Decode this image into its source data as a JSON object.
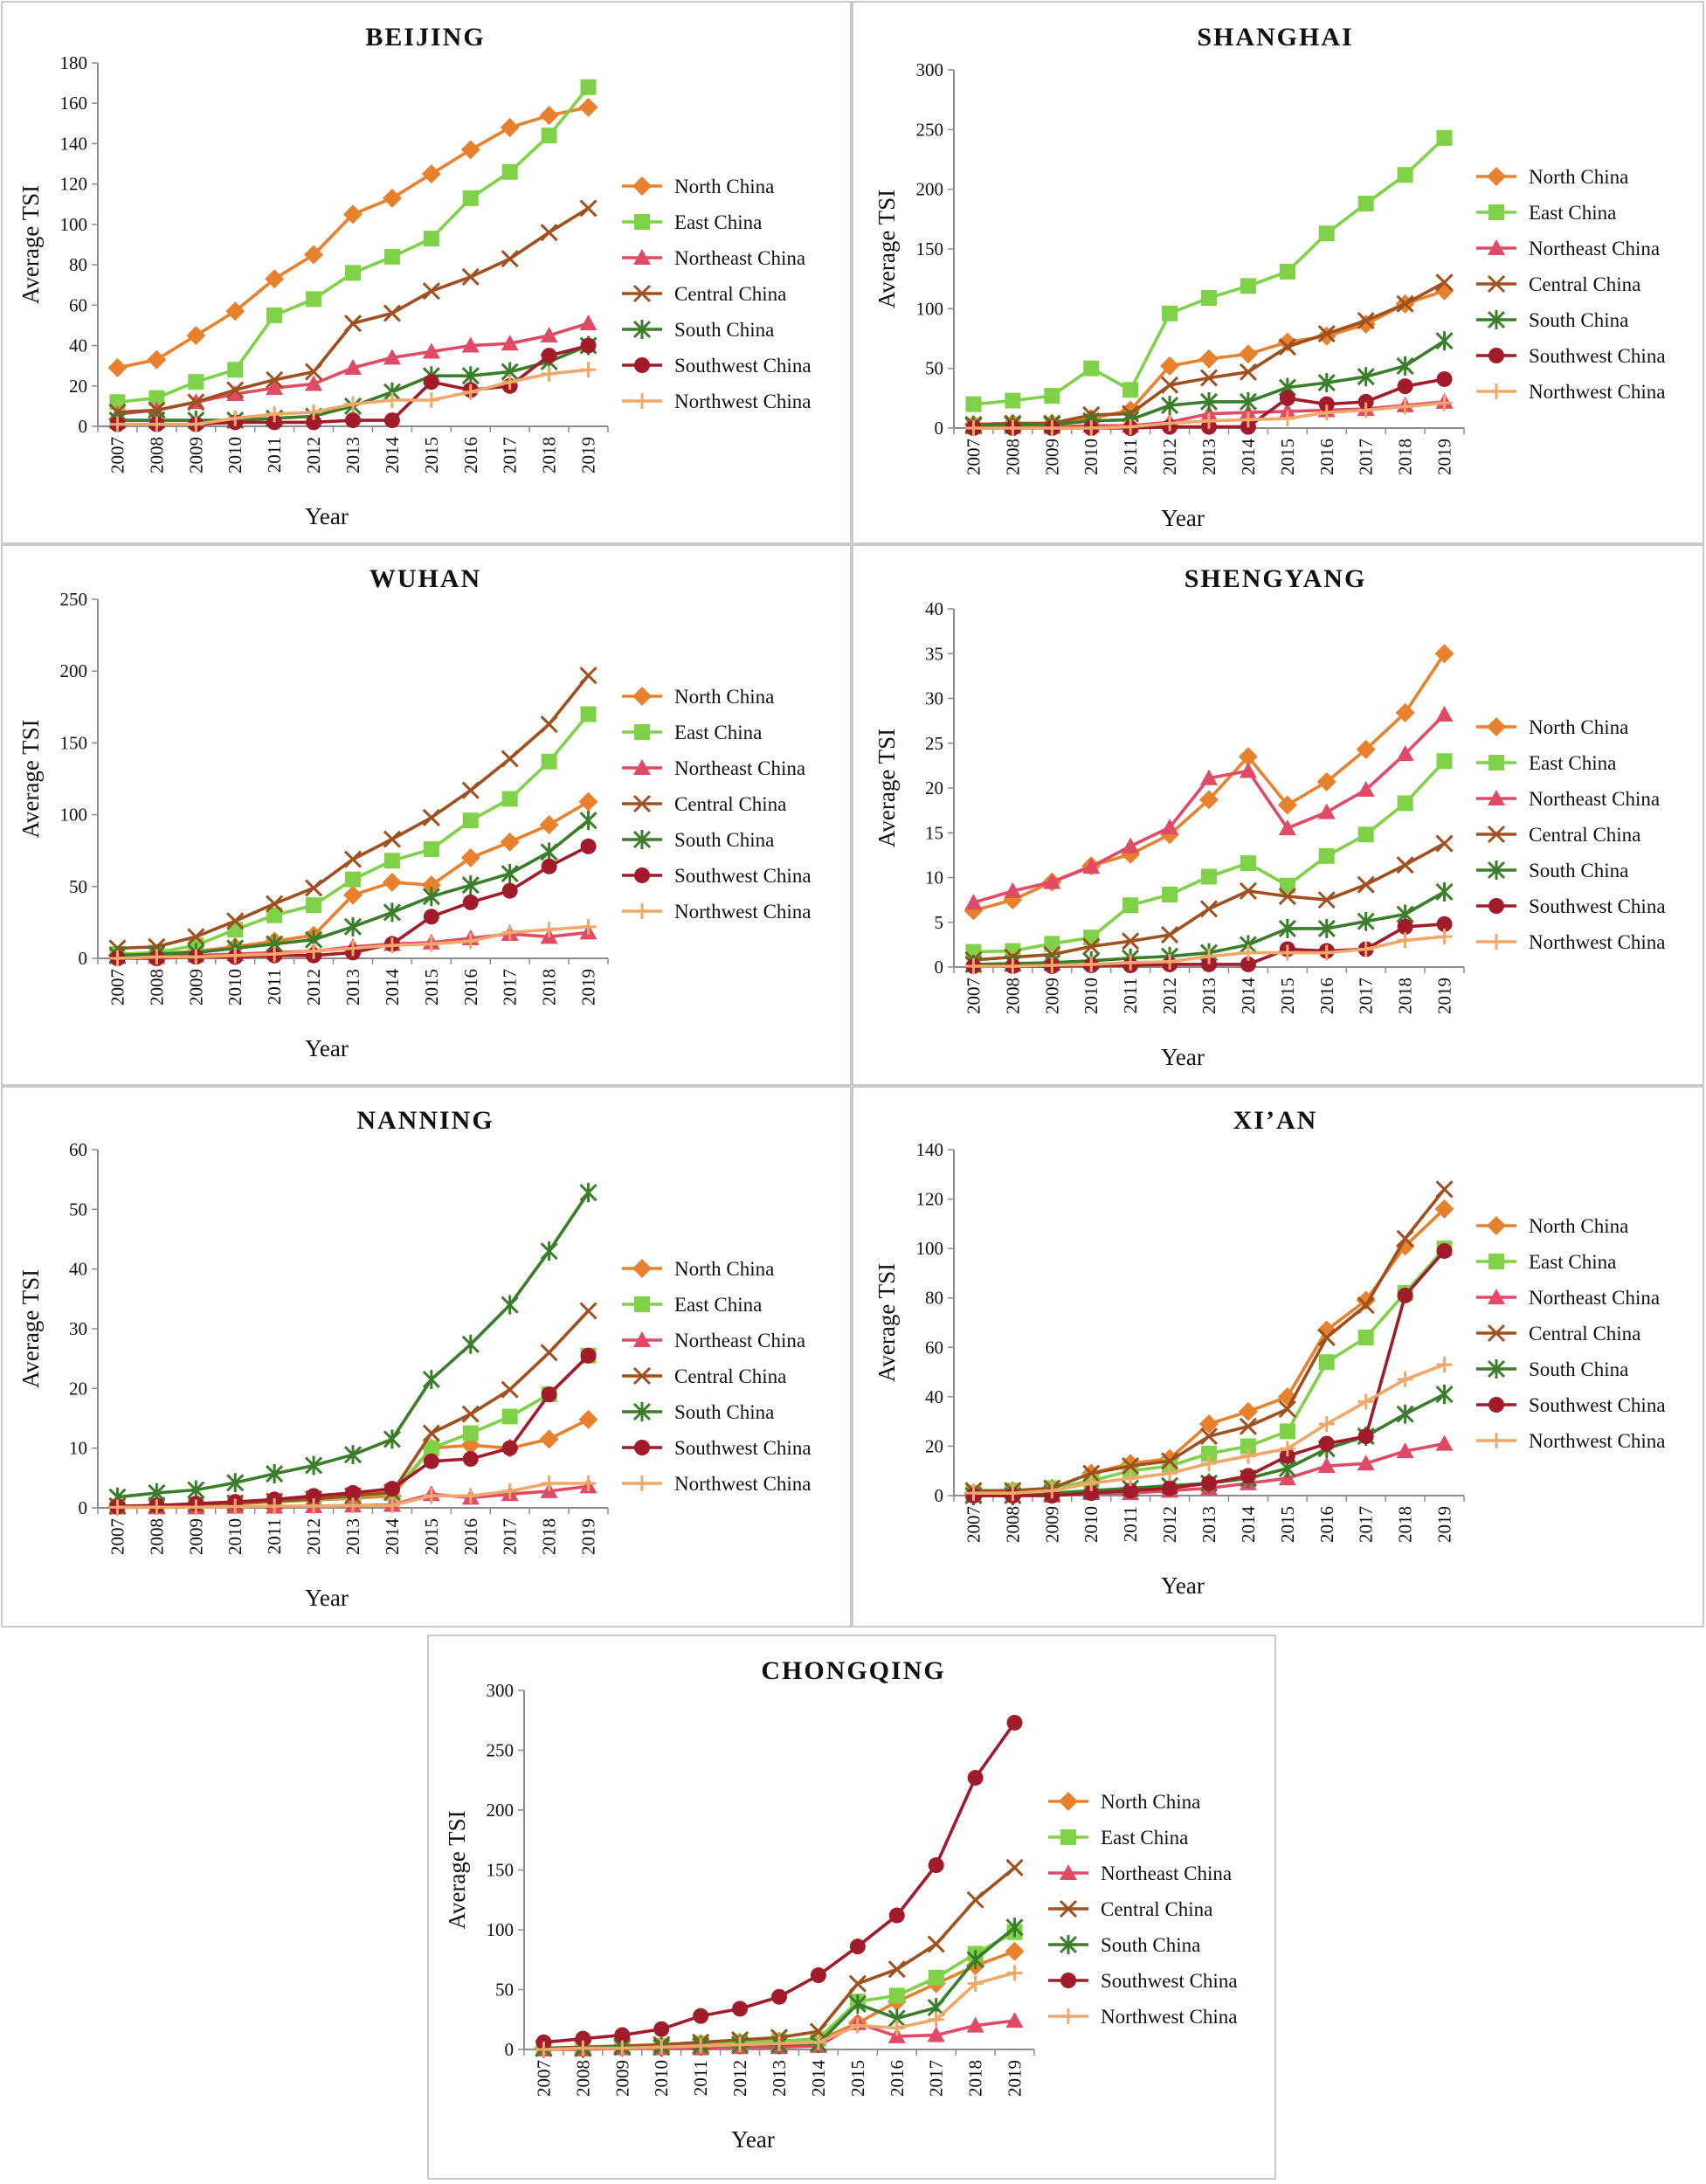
{
  "colors": {
    "North China": "#e8812e",
    "East China": "#7fd247",
    "Northeast China": "#e04a66",
    "Central China": "#a0501e",
    "South China": "#3a7d2a",
    "Southwest China": "#a11b2b",
    "Northwest China": "#f0a86a"
  },
  "markers": {
    "North China": "diamond",
    "East China": "square",
    "Northeast China": "triangle",
    "Central China": "x",
    "South China": "star",
    "Southwest China": "circle",
    "Northwest China": "plus"
  },
  "chart_data": [
    {
      "type": "line",
      "title": "BEIJING",
      "xlabel": "Year",
      "ylabel": "Average TSI",
      "ylim": [
        0,
        180
      ],
      "ystep": 20,
      "categories": [
        "2007",
        "2008",
        "2009",
        "2010",
        "2011",
        "2012",
        "2013",
        "2014",
        "2015",
        "2016",
        "2017",
        "2018",
        "2019"
      ],
      "series": [
        {
          "name": "North China",
          "values": [
            29,
            33,
            45,
            57,
            73,
            85,
            105,
            113,
            125,
            137,
            148,
            154,
            158
          ]
        },
        {
          "name": "East China",
          "values": [
            12,
            14,
            22,
            28,
            55,
            63,
            76,
            84,
            93,
            113,
            126,
            144,
            168
          ]
        },
        {
          "name": "Northeast China",
          "values": [
            6,
            8,
            12,
            16,
            19,
            21,
            29,
            34,
            37,
            40,
            41,
            45,
            51
          ]
        },
        {
          "name": "Central China",
          "values": [
            7,
            8,
            12,
            18,
            23,
            27,
            51,
            56,
            67,
            74,
            83,
            96,
            108
          ]
        },
        {
          "name": "South China",
          "values": [
            3,
            3,
            3,
            3,
            4,
            5,
            10,
            17,
            25,
            25,
            27,
            32,
            40
          ]
        },
        {
          "name": "Southwest China",
          "values": [
            1,
            1,
            1,
            2,
            2,
            2,
            3,
            3,
            22,
            18,
            20,
            35,
            40
          ]
        },
        {
          "name": "Northwest China",
          "values": [
            1,
            1,
            1,
            4,
            6,
            7,
            11,
            13,
            13,
            17,
            22,
            26,
            28
          ]
        }
      ]
    },
    {
      "type": "line",
      "title": "SHANGHAI",
      "xlabel": "Year",
      "ylabel": "Average TSI",
      "ylim": [
        0,
        300
      ],
      "ystep": 50,
      "categories": [
        "2007",
        "2008",
        "2009",
        "2010",
        "2011",
        "2012",
        "2013",
        "2014",
        "2015",
        "2016",
        "2017",
        "2018",
        "2019"
      ],
      "series": [
        {
          "name": "North China",
          "values": [
            3,
            4,
            4,
            8,
            15,
            52,
            58,
            62,
            72,
            77,
            87,
            104,
            115
          ]
        },
        {
          "name": "East China",
          "values": [
            20,
            23,
            27,
            50,
            32,
            96,
            109,
            119,
            131,
            163,
            188,
            212,
            243
          ]
        },
        {
          "name": "Northeast China",
          "values": [
            1,
            1,
            1,
            2,
            2,
            5,
            12,
            13,
            14,
            15,
            16,
            19,
            22
          ]
        },
        {
          "name": "Central China",
          "values": [
            3,
            4,
            4,
            11,
            12,
            36,
            42,
            47,
            68,
            79,
            90,
            104,
            122
          ]
        },
        {
          "name": "South China",
          "values": [
            2,
            3,
            3,
            6,
            7,
            19,
            22,
            22,
            34,
            38,
            43,
            52,
            73
          ]
        },
        {
          "name": "Southwest China",
          "values": [
            0,
            0,
            0,
            0,
            0,
            1,
            1,
            1,
            25,
            20,
            22,
            35,
            41
          ]
        },
        {
          "name": "Northwest China",
          "values": [
            0,
            0,
            0,
            0,
            1,
            4,
            6,
            7,
            8,
            13,
            15,
            18,
            21
          ]
        }
      ]
    },
    {
      "type": "line",
      "title": "WUHAN",
      "xlabel": "Year",
      "ylabel": "Average TSI",
      "ylim": [
        0,
        250
      ],
      "ystep": 50,
      "categories": [
        "2007",
        "2008",
        "2009",
        "2010",
        "2011",
        "2012",
        "2013",
        "2014",
        "2015",
        "2016",
        "2017",
        "2018",
        "2019"
      ],
      "series": [
        {
          "name": "North China",
          "values": [
            2,
            3,
            5,
            8,
            12,
            16,
            44,
            53,
            51,
            70,
            81,
            93,
            109
          ]
        },
        {
          "name": "East China",
          "values": [
            3,
            4,
            9,
            20,
            30,
            37,
            55,
            68,
            76,
            96,
            111,
            137,
            170
          ]
        },
        {
          "name": "Northeast China",
          "values": [
            1,
            1,
            2,
            3,
            4,
            5,
            8,
            10,
            11,
            14,
            17,
            15,
            18
          ]
        },
        {
          "name": "Central China",
          "values": [
            7,
            8,
            15,
            26,
            38,
            49,
            69,
            83,
            98,
            117,
            139,
            163,
            197
          ]
        },
        {
          "name": "South China",
          "values": [
            2,
            3,
            4,
            7,
            10,
            13,
            22,
            32,
            43,
            51,
            59,
            74,
            96
          ]
        },
        {
          "name": "Southwest China",
          "values": [
            0,
            0,
            1,
            1,
            2,
            2,
            4,
            10,
            29,
            39,
            47,
            64,
            78
          ]
        },
        {
          "name": "Northwest China",
          "values": [
            0,
            1,
            1,
            2,
            3,
            5,
            7,
            9,
            10,
            12,
            18,
            20,
            22
          ]
        }
      ]
    },
    {
      "type": "line",
      "title": "SHENGYANG",
      "xlabel": "Year",
      "ylabel": "Average TSI",
      "ylim": [
        0,
        40
      ],
      "ystep": 5,
      "categories": [
        "2007",
        "2008",
        "2009",
        "2010",
        "2011",
        "2012",
        "2013",
        "2014",
        "2015",
        "2016",
        "2017",
        "2018",
        "2019"
      ],
      "series": [
        {
          "name": "North China",
          "values": [
            6.3,
            7.5,
            9.5,
            11.3,
            12.6,
            14.8,
            18.7,
            23.5,
            18.1,
            20.7,
            24.3,
            28.4,
            35.0
          ]
        },
        {
          "name": "East China",
          "values": [
            1.7,
            1.8,
            2.6,
            3.3,
            6.9,
            8.1,
            10.1,
            11.6,
            9.1,
            12.4,
            14.8,
            18.3,
            23.0
          ]
        },
        {
          "name": "Northeast China",
          "values": [
            7.2,
            8.5,
            9.5,
            11.2,
            13.5,
            15.6,
            21.1,
            21.9,
            15.5,
            17.3,
            19.8,
            23.8,
            28.2
          ]
        },
        {
          "name": "Central China",
          "values": [
            0.8,
            1.1,
            1.4,
            2.3,
            2.9,
            3.6,
            6.5,
            8.5,
            7.9,
            7.5,
            9.2,
            11.4,
            13.8
          ]
        },
        {
          "name": "South China",
          "values": [
            0.3,
            0.4,
            0.5,
            0.7,
            1.0,
            1.2,
            1.6,
            2.5,
            4.3,
            4.3,
            5.1,
            5.9,
            8.4
          ]
        },
        {
          "name": "Southwest China",
          "values": [
            0.1,
            0.1,
            0.1,
            0.2,
            0.2,
            0.3,
            0.3,
            0.3,
            2.0,
            1.8,
            2.0,
            4.5,
            4.8
          ]
        },
        {
          "name": "Northwest China",
          "values": [
            0.1,
            0.1,
            0.2,
            0.3,
            0.5,
            0.6,
            1.2,
            1.6,
            1.6,
            1.6,
            2.0,
            3.0,
            3.4
          ]
        }
      ]
    },
    {
      "type": "line",
      "title": "NANNING",
      "xlabel": "Year",
      "ylabel": "Average TSI",
      "ylim": [
        0,
        60
      ],
      "ystep": 10,
      "categories": [
        "2007",
        "2008",
        "2009",
        "2010",
        "2011",
        "2012",
        "2013",
        "2014",
        "2015",
        "2016",
        "2017",
        "2018",
        "2019"
      ],
      "series": [
        {
          "name": "North China",
          "values": [
            0.2,
            0.3,
            0.5,
            0.7,
            1.0,
            1.3,
            1.6,
            2.0,
            10.0,
            10.5,
            10.0,
            11.5,
            14.8
          ]
        },
        {
          "name": "East China",
          "values": [
            0.2,
            0.3,
            0.5,
            0.8,
            1.0,
            1.4,
            1.8,
            2.5,
            10.0,
            12.5,
            15.3,
            19.0,
            25.5
          ]
        },
        {
          "name": "Northeast China",
          "values": [
            0.1,
            0.1,
            0.1,
            0.2,
            0.2,
            0.3,
            0.4,
            0.5,
            2.3,
            1.7,
            2.3,
            2.8,
            3.6
          ]
        },
        {
          "name": "Central China",
          "values": [
            0.3,
            0.4,
            0.6,
            0.8,
            1.1,
            1.5,
            2.0,
            2.6,
            12.5,
            15.7,
            19.8,
            26.0,
            33.0
          ]
        },
        {
          "name": "South China",
          "values": [
            1.8,
            2.5,
            3.0,
            4.2,
            5.7,
            7.1,
            8.9,
            11.5,
            21.5,
            27.4,
            34.0,
            43.0,
            52.8
          ]
        },
        {
          "name": "Southwest China",
          "values": [
            0.2,
            0.4,
            0.7,
            1.0,
            1.4,
            2.0,
            2.5,
            3.2,
            7.8,
            8.2,
            10.0,
            19.0,
            25.5
          ]
        },
        {
          "name": "Northwest China",
          "values": [
            0.1,
            0.1,
            0.1,
            0.2,
            0.3,
            0.3,
            0.4,
            0.4,
            2.0,
            2.0,
            2.8,
            4.1,
            4.1
          ]
        }
      ]
    },
    {
      "type": "line",
      "title": "XI’AN",
      "xlabel": "Year",
      "ylabel": "Average TSI",
      "ylim": [
        0,
        140
      ],
      "ystep": 20,
      "categories": [
        "2007",
        "2008",
        "2009",
        "2010",
        "2011",
        "2012",
        "2013",
        "2014",
        "2015",
        "2016",
        "2017",
        "2018",
        "2019"
      ],
      "series": [
        {
          "name": "North China",
          "values": [
            1,
            2,
            3,
            9,
            13,
            15,
            29,
            34,
            40,
            67,
            79,
            101,
            116
          ]
        },
        {
          "name": "East China",
          "values": [
            1,
            2,
            3,
            6,
            10,
            12,
            17,
            20,
            26,
            54,
            64,
            82,
            100
          ]
        },
        {
          "name": "Northeast China",
          "values": [
            0,
            0,
            0,
            1,
            1,
            2,
            3,
            5,
            7,
            12,
            13,
            18,
            21
          ]
        },
        {
          "name": "Central China",
          "values": [
            2,
            2,
            3,
            9,
            12,
            14,
            24,
            28,
            35,
            64,
            77,
            104,
            124
          ]
        },
        {
          "name": "South China",
          "values": [
            0,
            0,
            1,
            2,
            3,
            4,
            5,
            7,
            11,
            19,
            24,
            33,
            41
          ]
        },
        {
          "name": "Southwest China",
          "values": [
            0,
            0,
            0,
            1,
            2,
            3,
            5,
            8,
            16,
            21,
            24,
            81,
            99
          ]
        },
        {
          "name": "Northwest China",
          "values": [
            1,
            1,
            2,
            5,
            7,
            9,
            13,
            16,
            19,
            29,
            38,
            47,
            53
          ]
        }
      ]
    },
    {
      "type": "line",
      "title": "CHONGQING",
      "xlabel": "Year",
      "ylabel": "Average TSI",
      "ylim": [
        0,
        300
      ],
      "ystep": 50,
      "categories": [
        "2007",
        "2008",
        "2009",
        "2010",
        "2011",
        "2012",
        "2013",
        "2014",
        "2015",
        "2016",
        "2017",
        "2018",
        "2019"
      ],
      "series": [
        {
          "name": "North China",
          "values": [
            1,
            1,
            2,
            3,
            5,
            6,
            7,
            8,
            22,
            40,
            55,
            70,
            82
          ]
        },
        {
          "name": "East China",
          "values": [
            1,
            2,
            2,
            3,
            5,
            6,
            7,
            9,
            40,
            45,
            60,
            80,
            98
          ]
        },
        {
          "name": "Northeast China",
          "values": [
            0,
            0,
            1,
            1,
            1,
            2,
            2,
            3,
            22,
            11,
            12,
            20,
            24
          ]
        },
        {
          "name": "Central China",
          "values": [
            1,
            2,
            3,
            4,
            6,
            8,
            10,
            15,
            55,
            67,
            88,
            125,
            152
          ]
        },
        {
          "name": "South China",
          "values": [
            1,
            1,
            2,
            2,
            3,
            4,
            4,
            5,
            38,
            26,
            35,
            75,
            102
          ]
        },
        {
          "name": "Southwest China",
          "values": [
            6,
            9,
            12,
            17,
            28,
            34,
            44,
            62,
            86,
            112,
            154,
            227,
            273
          ]
        },
        {
          "name": "Northwest China",
          "values": [
            0,
            1,
            1,
            2,
            3,
            4,
            5,
            6,
            20,
            18,
            25,
            55,
            64
          ]
        }
      ]
    }
  ]
}
